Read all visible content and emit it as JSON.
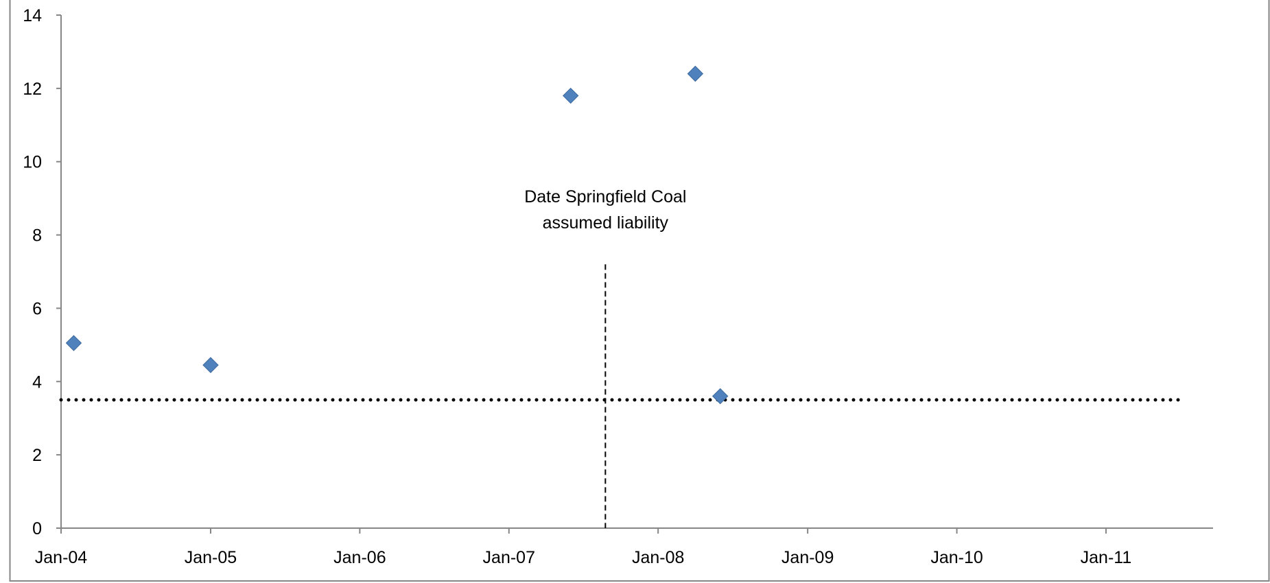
{
  "chart_data": {
    "type": "scatter",
    "title": "",
    "xlabel": "",
    "ylabel": "",
    "x_axis_type": "date",
    "xlim": [
      "2004-01-01",
      "2011-09-20"
    ],
    "ylim": [
      0,
      14
    ],
    "y_ticks": [
      0,
      2,
      4,
      6,
      8,
      10,
      12,
      14
    ],
    "x_ticks": [
      {
        "date": "2004-01-01",
        "label": "Jan-04"
      },
      {
        "date": "2005-01-01",
        "label": "Jan-05"
      },
      {
        "date": "2006-01-01",
        "label": "Jan-06"
      },
      {
        "date": "2007-01-01",
        "label": "Jan-07"
      },
      {
        "date": "2008-01-01",
        "label": "Jan-08"
      },
      {
        "date": "2009-01-01",
        "label": "Jan-09"
      },
      {
        "date": "2010-01-01",
        "label": "Jan-10"
      },
      {
        "date": "2011-01-01",
        "label": "Jan-11"
      }
    ],
    "grid": false,
    "legend": "none",
    "series": [
      {
        "marker": "diamond",
        "color": "#4F81BD",
        "points": [
          {
            "x": "2004-02-01",
            "y": 5.05
          },
          {
            "x": "2005-01-01",
            "y": 4.45
          },
          {
            "x": "2007-06-01",
            "y": 11.8
          },
          {
            "x": "2008-04-01",
            "y": 12.4
          },
          {
            "x": "2008-06-01",
            "y": 3.6
          }
        ]
      }
    ],
    "reference_lines": [
      {
        "orientation": "horizontal",
        "y": 3.5,
        "style": "dotted",
        "color": "#000000",
        "x_end": "2011-07-01"
      },
      {
        "orientation": "vertical",
        "x": "2007-08-25",
        "style": "dashed",
        "color": "#000000",
        "y_top": 7.2
      }
    ],
    "annotations": [
      {
        "lines": [
          "Date Springfield Coal",
          "assumed liability"
        ],
        "x": "2007-08-25",
        "y": 8.1
      }
    ]
  },
  "colors": {
    "axis": "#868686",
    "frame": "#868686",
    "marker": "#4F81BD",
    "marker_edge": "#3C6A9E"
  }
}
